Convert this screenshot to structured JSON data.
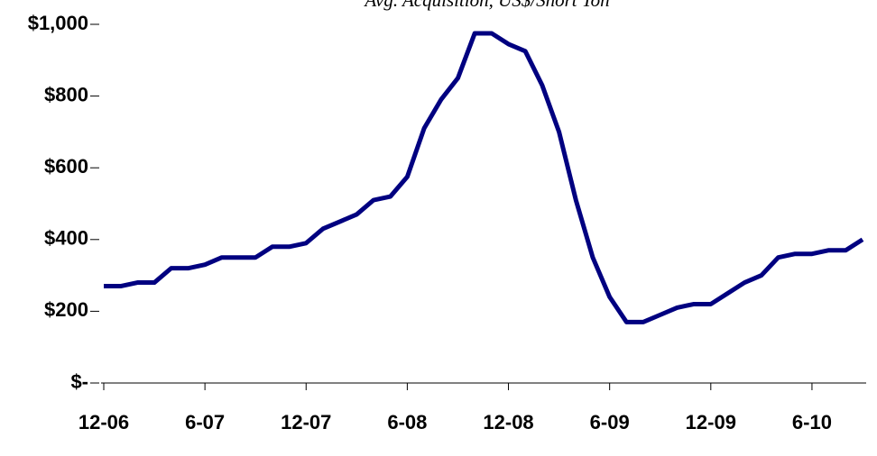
{
  "chart_data": {
    "type": "line",
    "title": "Avg. Acquisition, US$/Short Ton",
    "categories": [
      "12-06",
      null,
      null,
      null,
      null,
      null,
      "6-07",
      null,
      null,
      null,
      null,
      null,
      "12-07",
      null,
      null,
      null,
      null,
      null,
      "6-08",
      null,
      null,
      null,
      null,
      null,
      "12-08",
      null,
      null,
      null,
      null,
      null,
      "6-09",
      null,
      null,
      null,
      null,
      null,
      "12-09",
      null,
      null,
      null,
      null,
      null,
      "6-10",
      null,
      null,
      null
    ],
    "series": [
      {
        "name": "Avg. Acquisition",
        "color": "#000080",
        "values": [
          270,
          270,
          280,
          280,
          320,
          320,
          330,
          350,
          350,
          350,
          380,
          380,
          390,
          430,
          450,
          470,
          510,
          520,
          575,
          710,
          790,
          850,
          975,
          975,
          945,
          925,
          830,
          700,
          510,
          350,
          240,
          170,
          170,
          190,
          210,
          220,
          220,
          250,
          280,
          300,
          350,
          360,
          360,
          370,
          370,
          400
        ]
      }
    ],
    "ylim": [
      0,
      1000
    ],
    "yticks": [
      {
        "value": 0,
        "label": "$-"
      },
      {
        "value": 200,
        "label": "$200"
      },
      {
        "value": 400,
        "label": "$400"
      },
      {
        "value": 600,
        "label": "$600"
      },
      {
        "value": 800,
        "label": "$800"
      },
      {
        "value": 1000,
        "label": "$1,000"
      }
    ],
    "grid": false
  }
}
